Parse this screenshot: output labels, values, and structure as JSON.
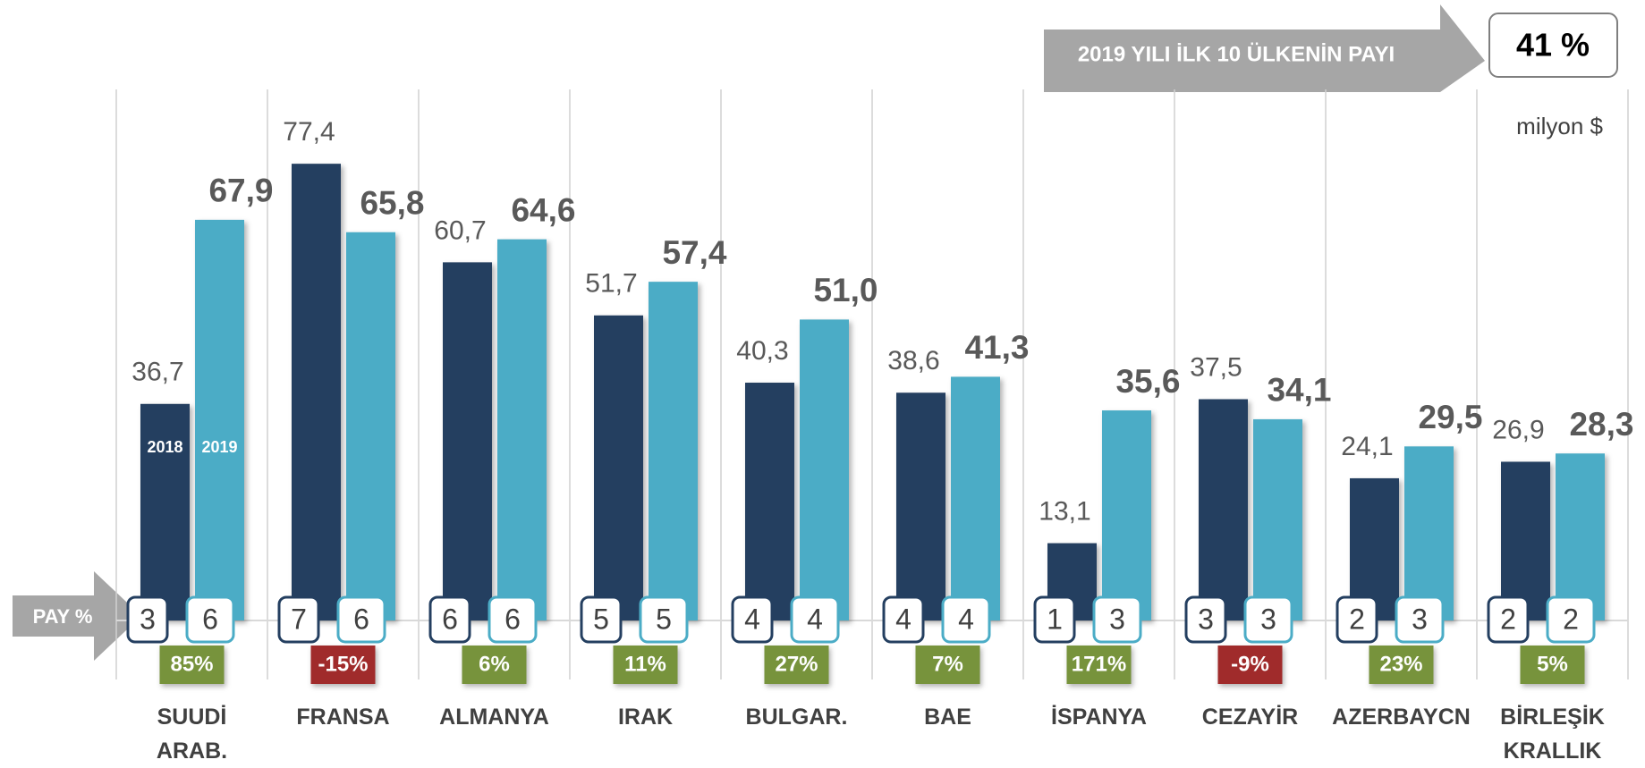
{
  "chart_data": {
    "type": "bar",
    "headline": "2019 YILI İLK 10 ÜLKENİN PAYI",
    "share": {
      "value": 41,
      "label": "41 %"
    },
    "unit": "milyon $",
    "pay_label": "PAY %",
    "categories": [
      "SUUDİ ARAB.",
      "FRANSA",
      "ALMANYA",
      "IRAK",
      "BULGAR.",
      "BAE",
      "İSPANYA",
      "CEZAYİR",
      "AZERBAYCN",
      "BİRLEŞİK KRALLIK"
    ],
    "series": [
      {
        "name": "2018",
        "color": "#243f60",
        "values": [
          36.7,
          77.4,
          60.7,
          51.7,
          40.3,
          38.6,
          13.1,
          37.5,
          24.1,
          26.9
        ],
        "value_labels": [
          "36,7",
          "77,4",
          "60,7",
          "51,7",
          "40,3",
          "38,6",
          "13,1",
          "37,5",
          "24,1",
          "26,9"
        ],
        "pay": [
          3,
          7,
          6,
          5,
          4,
          4,
          1,
          3,
          2,
          2
        ]
      },
      {
        "name": "2019",
        "color": "#4bacc6",
        "values": [
          67.9,
          65.8,
          64.6,
          57.4,
          51.0,
          41.3,
          35.6,
          34.1,
          29.5,
          28.3
        ],
        "value_labels": [
          "67,9",
          "65,8",
          "64,6",
          "57,4",
          "51,0",
          "41,3",
          "35,6",
          "34,1",
          "29,5",
          "28,3"
        ],
        "pay": [
          6,
          6,
          6,
          5,
          4,
          4,
          3,
          3,
          3,
          2
        ]
      }
    ],
    "change": [
      85,
      -15,
      6,
      11,
      27,
      7,
      171,
      -9,
      23,
      5
    ],
    "change_labels": [
      "85%",
      "-15%",
      "6%",
      "11%",
      "27%",
      "7%",
      "171%",
      "-9%",
      "23%",
      "5%"
    ],
    "positive_color": "#77933c",
    "negative_color": "#a02b2b"
  }
}
